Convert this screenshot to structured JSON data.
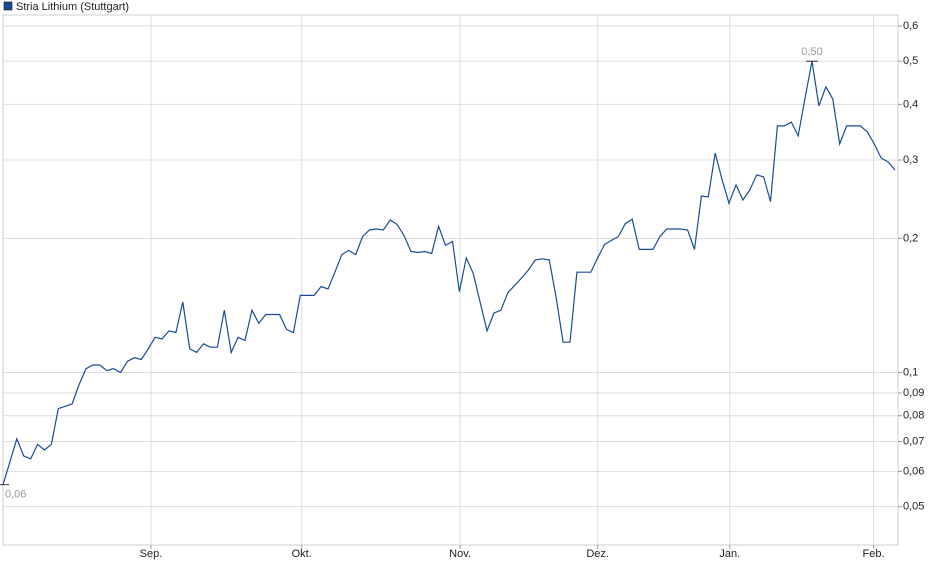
{
  "chart_data": {
    "type": "line",
    "log_scale": true,
    "grid": true,
    "legend": "top-left",
    "series": [
      {
        "name": "Stria Lithium (Stuttgart)",
        "color": "#1a4c96",
        "values": [
          0.056,
          0.063,
          0.071,
          0.065,
          0.064,
          0.069,
          0.067,
          0.069,
          0.083,
          0.084,
          0.085,
          0.094,
          0.102,
          0.104,
          0.104,
          0.101,
          0.102,
          0.1,
          0.106,
          0.108,
          0.107,
          0.113,
          0.12,
          0.119,
          0.124,
          0.123,
          0.144,
          0.113,
          0.111,
          0.116,
          0.114,
          0.114,
          0.138,
          0.111,
          0.12,
          0.118,
          0.138,
          0.129,
          0.135,
          0.135,
          0.135,
          0.125,
          0.123,
          0.149,
          0.149,
          0.149,
          0.156,
          0.154,
          0.168,
          0.184,
          0.188,
          0.184,
          0.202,
          0.209,
          0.21,
          0.209,
          0.22,
          0.215,
          0.203,
          0.187,
          0.186,
          0.187,
          0.185,
          0.213,
          0.193,
          0.197,
          0.152,
          0.181,
          0.167,
          0.144,
          0.124,
          0.136,
          0.138,
          0.151,
          0.157,
          0.163,
          0.17,
          0.179,
          0.18,
          0.179,
          0.147,
          0.117,
          0.117,
          0.168,
          0.168,
          0.168,
          0.181,
          0.194,
          0.198,
          0.202,
          0.216,
          0.221,
          0.189,
          0.189,
          0.189,
          0.202,
          0.21,
          0.21,
          0.21,
          0.209,
          0.189,
          0.249,
          0.248,
          0.311,
          0.271,
          0.24,
          0.264,
          0.244,
          0.257,
          0.278,
          0.275,
          0.242,
          0.358,
          0.358,
          0.365,
          0.34,
          0.414,
          0.5,
          0.397,
          0.438,
          0.411,
          0.326,
          0.358,
          0.358,
          0.358,
          0.347,
          0.326,
          0.303,
          0.297,
          0.285
        ]
      }
    ],
    "annotations": {
      "high": "0,50",
      "low": "0,06"
    },
    "xlim": [
      0,
      129
    ],
    "xticks": [
      {
        "value": 21.4,
        "label": "Sep."
      },
      {
        "value": 43.2,
        "label": "Okt."
      },
      {
        "value": 66.1,
        "label": "Nov."
      },
      {
        "value": 86.0,
        "label": "Dez."
      },
      {
        "value": 105.1,
        "label": "Jan."
      },
      {
        "value": 125.9,
        "label": "Feb."
      }
    ],
    "ylim": [
      0.041,
      0.635
    ],
    "yticks": [
      {
        "value": 0.05,
        "label": "0,05"
      },
      {
        "value": 0.06,
        "label": "0,06"
      },
      {
        "value": 0.07,
        "label": "0,07"
      },
      {
        "value": 0.08,
        "label": "0,08"
      },
      {
        "value": 0.09,
        "label": "0,09"
      },
      {
        "value": 0.1,
        "label": "0,1"
      },
      {
        "value": 0.2,
        "label": "0,2"
      },
      {
        "value": 0.3,
        "label": "0,3"
      },
      {
        "value": 0.4,
        "label": "0,4"
      },
      {
        "value": 0.5,
        "label": "0,5"
      },
      {
        "value": 0.6,
        "label": "0,6"
      }
    ]
  }
}
